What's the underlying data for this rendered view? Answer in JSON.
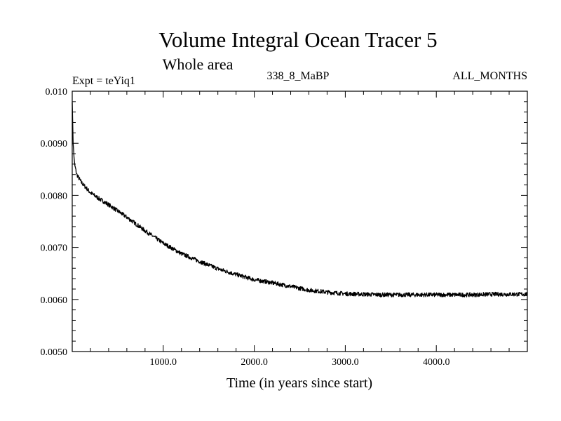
{
  "chart_data": {
    "type": "line",
    "title": "Volume Integral Ocean Tracer 5",
    "subtitle": "Whole area",
    "info_left": "Expt = teYiq1",
    "info_center": "338_8_MaBP",
    "info_right": "ALL_MONTHS",
    "xlabel": "Time (in years since start)",
    "ylabel": "",
    "xlim": [
      0,
      5000
    ],
    "ylim": [
      0.005,
      0.01
    ],
    "x_ticks": [
      1000,
      2000,
      3000,
      4000
    ],
    "x_tick_labels": [
      "1000.0",
      "2000.0",
      "3000.0",
      "4000.0"
    ],
    "y_ticks": [
      0.005,
      0.006,
      0.007,
      0.008,
      0.009,
      0.01
    ],
    "y_tick_labels": [
      "0.0050",
      "0.0060",
      "0.0070",
      "0.0080",
      "0.0090",
      "0.010"
    ],
    "grid": false,
    "series": [
      {
        "color": "#000000",
        "x": [
          0,
          10,
          25,
          50,
          100,
          200,
          300,
          400,
          500,
          600,
          800,
          1000,
          1200,
          1400,
          1600,
          1800,
          2000,
          2200,
          2400,
          2600,
          2800,
          3000,
          3200,
          3400,
          3600,
          3800,
          4000,
          4200,
          4400,
          4600,
          4800,
          5000
        ],
        "y": [
          0.0098,
          0.009,
          0.0086,
          0.0084,
          0.00825,
          0.00805,
          0.00793,
          0.00782,
          0.0077,
          0.00758,
          0.00732,
          0.00708,
          0.00688,
          0.00673,
          0.00659,
          0.00648,
          0.00638,
          0.00632,
          0.00625,
          0.00618,
          0.00614,
          0.00611,
          0.0061,
          0.00609,
          0.00609,
          0.00609,
          0.00609,
          0.00609,
          0.00609,
          0.0061,
          0.0061,
          0.0061
        ]
      }
    ]
  }
}
